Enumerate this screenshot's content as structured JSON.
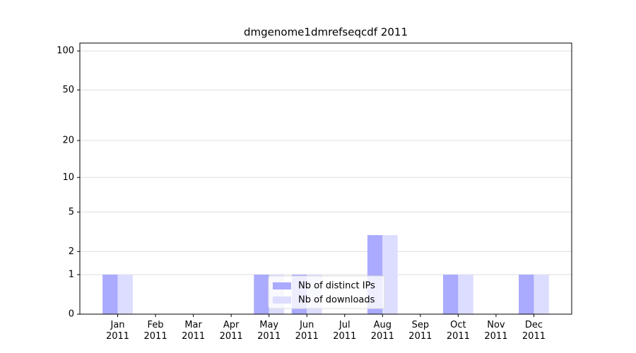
{
  "chart_data": {
    "type": "bar",
    "title": "dmgenome1dmrefseqcdf 2011",
    "categories": [
      "Jan 2011",
      "Feb 2011",
      "Mar 2011",
      "Apr 2011",
      "May 2011",
      "Jun 2011",
      "Jul 2011",
      "Aug 2011",
      "Sep 2011",
      "Oct 2011",
      "Nov 2011",
      "Dec 2011"
    ],
    "series": [
      {
        "name": "Nb of distinct IPs",
        "color": "#aaaaff",
        "values": [
          1,
          0,
          0,
          0,
          1,
          1,
          0,
          3,
          0,
          1,
          0,
          1
        ]
      },
      {
        "name": "Nb of downloads",
        "color": "#ddddff",
        "values": [
          1,
          0,
          0,
          0,
          1,
          1,
          0,
          3,
          0,
          1,
          0,
          1
        ]
      }
    ],
    "yscale": "log1p",
    "ylim": [
      0,
      115
    ],
    "yticks": [
      0,
      1,
      2,
      5,
      10,
      20,
      50,
      100
    ],
    "grid": true,
    "legend": "lower center"
  }
}
